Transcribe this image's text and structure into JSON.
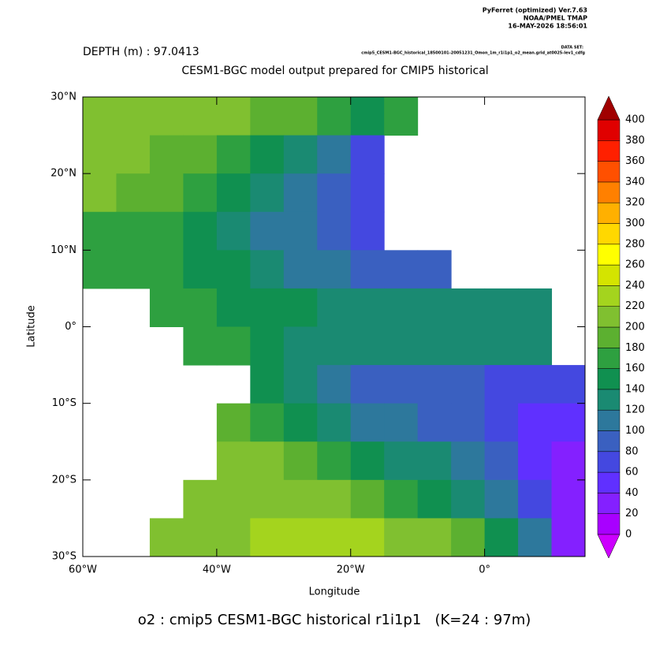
{
  "chart_data": {
    "type": "heatmap",
    "header": [
      "PyFerret (optimized) Ver.7.63",
      "NOAA/PMEL TMAP",
      "16-MAY-2026 18:56:01"
    ],
    "dataset_label": "DATA SET:",
    "dataset": "cmip5_CESM1-BGC_historical_18500101-20051231_Omon_1m_r1i1p1_o2_mean.grid_at0025-lev1_cdfg",
    "title": "DEPTH (m) : 97.0413",
    "subtitle": "CESM1-BGC model output prepared for CMIP5 historical",
    "x_label": "Longitude",
    "y_label": "Latitude",
    "caption": "o2 : cmip5 CESM1-BGC historical r1i1p1   (K=24 : 97m)",
    "xlim": [
      -60,
      15
    ],
    "ylim": [
      -30,
      30
    ],
    "xticks": [
      {
        "value": -60,
        "label": "60°W"
      },
      {
        "value": -40,
        "label": "40°W"
      },
      {
        "value": -20,
        "label": "20°W"
      },
      {
        "value": 0,
        "label": "0°"
      }
    ],
    "yticks": [
      {
        "value": 30,
        "label": "30°N"
      },
      {
        "value": 20,
        "label": "20°N"
      },
      {
        "value": 10,
        "label": "10°N"
      },
      {
        "value": 0,
        "label": "0°"
      },
      {
        "value": -10,
        "label": "10°S"
      },
      {
        "value": -20,
        "label": "20°S"
      },
      {
        "value": -30,
        "label": "30°S"
      }
    ],
    "x": [
      -57.5,
      -52.5,
      -47.5,
      -42.5,
      -37.5,
      -32.5,
      -27.5,
      -22.5,
      -17.5,
      -12.5,
      -7.5,
      -2.5,
      2.5,
      7.5,
      12.5
    ],
    "y": [
      27.5,
      22.5,
      17.5,
      12.5,
      7.5,
      2.5,
      -2.5,
      -7.5,
      -12.5,
      -17.5,
      -22.5,
      -27.5
    ],
    "values": [
      [
        210,
        205,
        200,
        200,
        200,
        195,
        185,
        160,
        140,
        170,
        null,
        null,
        null,
        null,
        null
      ],
      [
        205,
        200,
        195,
        185,
        170,
        150,
        130,
        100,
        70,
        null,
        null,
        null,
        null,
        null,
        null
      ],
      [
        200,
        195,
        185,
        170,
        150,
        125,
        100,
        85,
        65,
        null,
        null,
        null,
        null,
        null,
        null
      ],
      [
        175,
        175,
        165,
        150,
        135,
        115,
        100,
        85,
        70,
        null,
        null,
        null,
        null,
        null,
        null
      ],
      [
        170,
        170,
        160,
        150,
        145,
        130,
        115,
        100,
        95,
        85,
        90,
        null,
        null,
        null,
        null
      ],
      [
        null,
        null,
        170,
        160,
        150,
        145,
        140,
        135,
        130,
        130,
        130,
        130,
        130,
        125,
        null
      ],
      [
        null,
        null,
        null,
        175,
        160,
        145,
        125,
        120,
        120,
        125,
        130,
        130,
        125,
        120,
        null
      ],
      [
        null,
        null,
        null,
        null,
        null,
        140,
        120,
        100,
        95,
        90,
        85,
        80,
        70,
        60,
        70
      ],
      [
        null,
        null,
        null,
        null,
        190,
        175,
        150,
        130,
        115,
        105,
        95,
        85,
        70,
        55,
        45
      ],
      [
        null,
        null,
        null,
        null,
        205,
        200,
        190,
        170,
        150,
        135,
        120,
        100,
        80,
        50,
        30
      ],
      [
        null,
        null,
        null,
        210,
        215,
        215,
        210,
        200,
        185,
        165,
        145,
        125,
        100,
        60,
        35
      ],
      [
        null,
        null,
        200,
        205,
        215,
        220,
        225,
        225,
        220,
        210,
        200,
        180,
        150,
        100,
        30
      ]
    ],
    "colorbar_ticks": [
      0,
      20,
      40,
      60,
      80,
      100,
      120,
      140,
      160,
      180,
      200,
      220,
      240,
      260,
      280,
      300,
      320,
      340,
      360,
      380,
      400
    ],
    "colors": [
      "#cc00ff",
      "#a800ff",
      "#8420ff",
      "#6030ff",
      "#4448e0",
      "#3a60c0",
      "#2d789c",
      "#1a8a72",
      "#109050",
      "#2ea040",
      "#5cb030",
      "#80c030",
      "#a4d41e",
      "#d4e400",
      "#ffff00",
      "#ffd800",
      "#ffb000",
      "#ff8000",
      "#ff5000",
      "#ff2000",
      "#e00000",
      "#a00000"
    ]
  }
}
